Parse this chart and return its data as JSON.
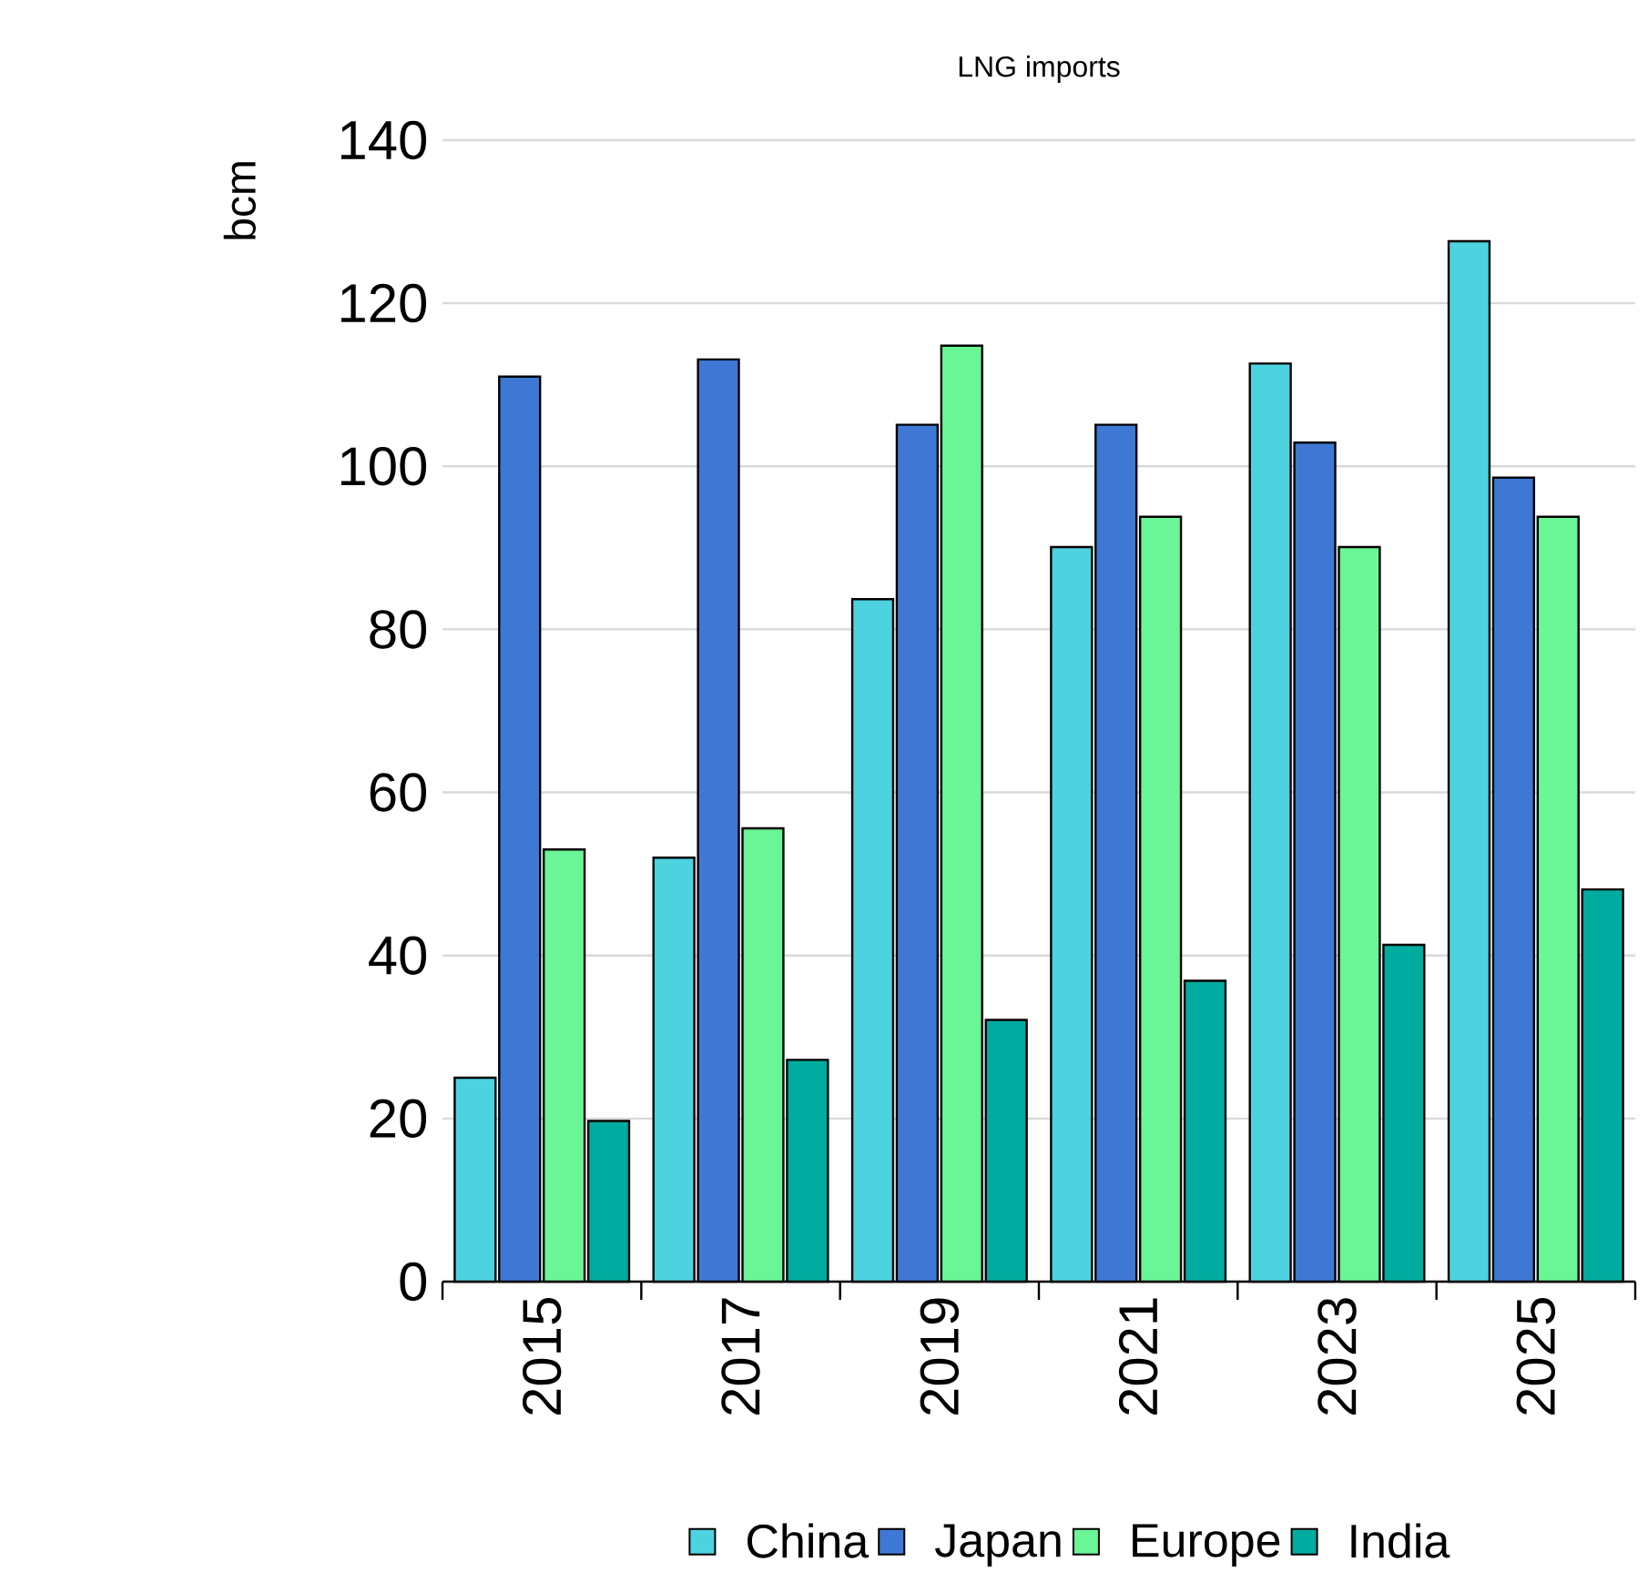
{
  "chart_data": {
    "type": "bar",
    "title": "LNG imports",
    "ylabel": "bcm",
    "categories": [
      "2015",
      "2017",
      "2019",
      "2021",
      "2023",
      "2025"
    ],
    "series": [
      {
        "name": "China",
        "color": "#4dd2e0",
        "values": [
          25,
          52,
          83.7,
          90.1,
          112.6,
          127.6
        ]
      },
      {
        "name": "Japan",
        "color": "#3f78d4",
        "values": [
          111,
          113.1,
          105.1,
          105.1,
          102.9,
          98.6
        ]
      },
      {
        "name": "Europe",
        "color": "#6af596",
        "values": [
          53,
          55.6,
          114.8,
          93.8,
          90.1,
          93.8
        ]
      },
      {
        "name": "India",
        "color": "#00ab9f",
        "values": [
          19.7,
          27.2,
          32.1,
          36.9,
          41.3,
          48.1
        ]
      }
    ],
    "ylim": [
      0,
      140
    ],
    "yticks": [
      0,
      20,
      40,
      60,
      80,
      100,
      120,
      140
    ],
    "grid": "y",
    "legend": "bottom"
  }
}
